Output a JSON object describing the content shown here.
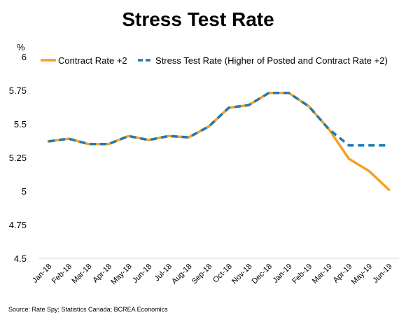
{
  "chart_data": {
    "type": "line",
    "title": "Stress Test Rate",
    "ylabel": "%",
    "xlabel": "",
    "ylim": [
      4.5,
      6
    ],
    "yticks": [
      "4.5",
      "4.75",
      "5",
      "5.25",
      "5.5",
      "5.75",
      "6"
    ],
    "categories": [
      "Jan-18",
      "Feb-18",
      "Mar-18",
      "Apr-18",
      "May-18",
      "Jun-18",
      "Jul-18",
      "Aug-18",
      "Sep-18",
      "Oct-18",
      "Nov-18",
      "Dec-18",
      "Jan-19",
      "Feb-19",
      "Mar-19",
      "Apr-19",
      "May-19",
      "Jun-19"
    ],
    "series": [
      {
        "name": "Contract Rate +2",
        "color": "#F4A125",
        "style": "solid",
        "values": [
          5.37,
          5.39,
          5.35,
          5.35,
          5.41,
          5.38,
          5.41,
          5.4,
          5.48,
          5.62,
          5.64,
          5.73,
          5.73,
          5.63,
          5.46,
          5.24,
          5.15,
          5.01
        ]
      },
      {
        "name": "Stress Test Rate (Higher of Posted and Contract Rate +2)",
        "color": "#1F7AB3",
        "style": "dashed",
        "values": [
          5.37,
          5.39,
          5.35,
          5.35,
          5.41,
          5.38,
          5.41,
          5.4,
          5.48,
          5.62,
          5.64,
          5.73,
          5.73,
          5.63,
          5.46,
          5.34,
          5.34,
          5.34
        ]
      }
    ],
    "legend": "top",
    "grid": false,
    "source": "Source: Rate Spy; Statistics Canada; BCREA Economics"
  }
}
